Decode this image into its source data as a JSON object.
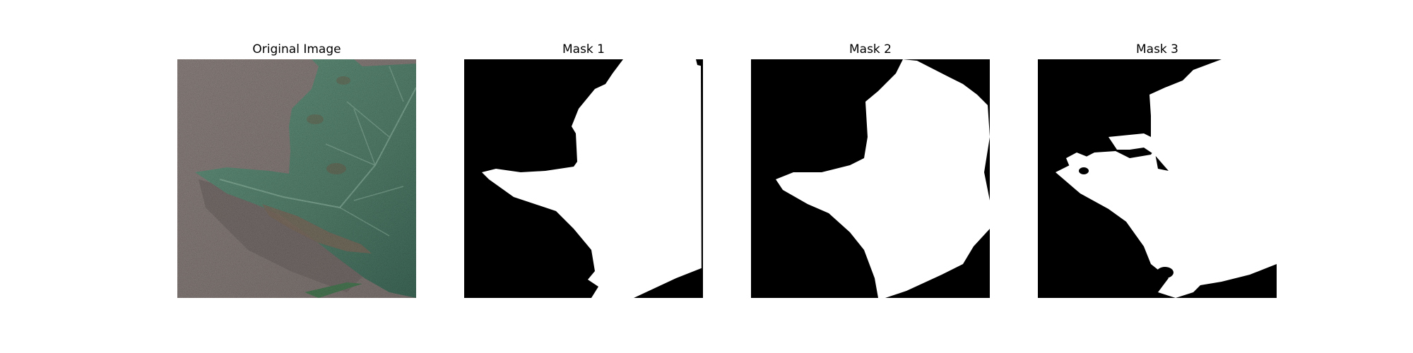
{
  "panels": [
    {
      "title": "Original Image",
      "icon": "leaf-photo"
    },
    {
      "title": "Mask 1",
      "icon": "segmentation-mask"
    },
    {
      "title": "Mask 2",
      "icon": "segmentation-mask"
    },
    {
      "title": "Mask 3",
      "icon": "segmentation-mask"
    }
  ],
  "colors": {
    "background": "#ffffff",
    "mask_foreground": "#ffffff",
    "mask_background": "#000000",
    "leaf": "#5f8a76",
    "table": "#8a807c"
  }
}
